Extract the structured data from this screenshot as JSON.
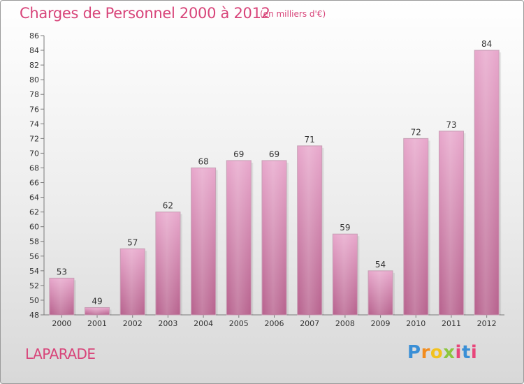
{
  "header": {
    "title": "Charges de Personnel 2000 à 2012",
    "subtitle": "(en milliers d'€)"
  },
  "footer": {
    "commune": "LAPARADE",
    "logo_letters": [
      "P",
      "r",
      "o",
      "x",
      "i",
      "t",
      "i"
    ]
  },
  "colors": {
    "bar_top": "#e8a8cc",
    "bar_bottom": "#b8648f",
    "title": "#d8457a"
  },
  "chart_data": {
    "type": "bar",
    "categories": [
      "2000",
      "2001",
      "2002",
      "2003",
      "2004",
      "2005",
      "2006",
      "2007",
      "2008",
      "2009",
      "2010",
      "2011",
      "2012"
    ],
    "values": [
      53,
      49,
      57,
      62,
      68,
      69,
      69,
      71,
      59,
      54,
      72,
      73,
      84
    ],
    "ylim": [
      48,
      86
    ],
    "yticks": [
      48,
      50,
      52,
      54,
      56,
      58,
      60,
      62,
      64,
      66,
      68,
      70,
      72,
      74,
      76,
      78,
      80,
      82,
      84,
      86
    ],
    "grid": false
  }
}
